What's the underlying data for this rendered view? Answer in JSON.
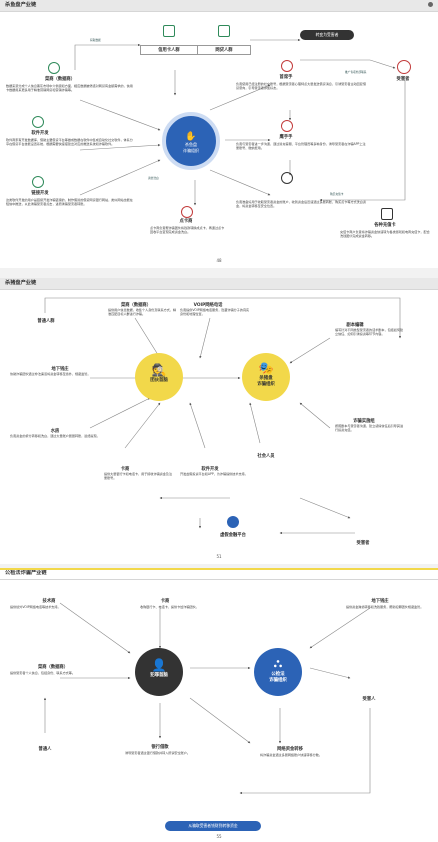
{
  "pages": [
    {
      "header": "杀鱼盘产业链",
      "page_number": "48",
      "center": {
        "line1": "杀鱼盘",
        "line2": "诈骗组织"
      },
      "pill_top": "转变为受害者",
      "nodes": {
        "credit": "信用卡人群",
        "webloan": "网贷人群",
        "vendor": "菜商（数据商）",
        "software": "软件开发",
        "linkdev": "链接开发",
        "aid": "点卡商",
        "zhuashou": "首席手",
        "xiangshou": "鹰手手",
        "zhuanshou": "资金手",
        "charge": "各种充值卡",
        "victim": "受害者",
        "player": "玩家"
      },
      "descs": {
        "vendor": "数据来源分成个人信息黑灰市场中介倒卖和方面，相应数据被筛选对网贷有金额需求的，信用卡数据用来更多用于精准营销网贷和营销诈骗等。",
        "software": "软件商家有开发数据库，借助主要借贷平台等做成数据在软件中集成自动化社交软件，体系分享在借贷平台技能设置系统，根据需要快速搭建出对应的推送系统和诈骗软件。",
        "linkdev": "这类软件开发的用户是链接开发诈骗链接的，制作假冒的借贷网贷银行网站，类似网站也能在短信中推送，以此诱骗受害者点击，进而诱骗受害者转账。",
        "zhuashou": "负责使用已经注册的社交账号，根据受害者心理特点大量发送借贷消息，引诱受害者主动回复借贷意向，引导受害者添加好友。",
        "xiangshou": "负责与受害者进一步沟通，通过冒充客服、平台管理员等多种身份，诱导受害者在诈骗APP上注册账号、缴纳费用。",
        "zhuanshou": "负责准备好用于收取受害者资金的账户，收到资金后迅速通过多层转账、购买点卡等方式洗白资金，将资金转移至安全位置。",
        "aid": "点卡商负责帮诈骗团伙将钱款转换成点卡，再通过点卡回收平台变现完成资金洗白。",
        "charge": "充值卡商户负责将诈骗资金快速转为各类游戏和电商充值卡，配合洗钱团伙完成资金转移。"
      },
      "arrows": {
        "top": "获取数据",
        "left_top": "提供数据",
        "left_mid": "提供软件",
        "left_bot": "提供链接",
        "cashout": "资金洗白",
        "right": "推广专项外部联系",
        "buy": "购买充值卡"
      }
    },
    {
      "header": "杀猪盘产业链",
      "page_number": "51",
      "center1": {
        "line1": "团伙首脑",
        "line2": ""
      },
      "center2": {
        "line1": "杀猪盘",
        "line2": "诈骗组织"
      },
      "nodes": {
        "ordinary": "普通人群",
        "vendor": "菜商（数据商）",
        "voip": "VOIP网络电话",
        "editor": "剧本编辑",
        "underground": "地下钱庄",
        "sendcard": "卡商",
        "software": "软件开发",
        "waterhouse": "水房",
        "dealer": "诈骗实施组",
        "society": "社会人员",
        "platform": "虚假金融平台",
        "victim": "受害者"
      },
      "descs": {
        "vendor": "提供用户信息数据，收集个人身份及联系方式，精准匹配目标人群进行诈骗。",
        "voip": "负责提供VOIP网络电话服务，隐藏诈骗分子的真实身份和地理位置。",
        "editor": "编写针对不同类型受害者的话术剧本，包括如何建立信任、如何引诱投资等环节内容。",
        "underground": "协助诈骗团伙通过非法渠道将资金转移至境外，规避监管。",
        "waterhouse": "负责资金的拆分转移和洗白，通过大量账户层层转账，最终提现。",
        "sendcard": "提供大量银行卡和电话卡，用于接收诈骗资金及注册账号。",
        "software": "开发虚假投资平台和APP，为诈骗提供技术支持。",
        "dealer": "按照剧本与受害者沟通，建立感情信任后引导其进行投资充值。"
      },
      "arrows": {
        "a1": "资金转移",
        "a2": "提供剧本",
        "a3": "诈骗实施",
        "a4": "充值投资",
        "a5": "平台支持"
      }
    },
    {
      "header": "公检法诈骗产业链",
      "page_number": "55",
      "bottom_pill": "从骗取受害者钱财到转移资金",
      "center1": {
        "line1": "犯罪首脑",
        "line2": ""
      },
      "center2": {
        "line1": "公检法",
        "line2": "诈骗组织"
      },
      "nodes": {
        "tech": "技术商",
        "card": "卡商",
        "underground": "地下钱庄",
        "vendor": "菜商（数据商）",
        "victim": "受害人",
        "ordinary": "普通人",
        "bank": "银行借款",
        "network": "网络资金转移"
      },
      "descs": {
        "tech": "提供境外VOIP网络电话等技术支持。",
        "card": "收购银行卡、电话卡，提供卡给诈骗团伙。",
        "underground": "提供资金跨境转移和洗钱服务，帮助犯罪团伙规避监管。",
        "vendor": "提供受害者个人信息，包括身份、联系方式等。",
        "bank": "诱导受害者通过银行借款并转入所谓安全账户。",
        "network": "将诈骗资金通过多层网络账户快速转移分散。"
      },
      "arrows": {
        "b1": "提供技术",
        "b2": "提供卡",
        "b3": "资金洗白",
        "b4": "实施诈骗",
        "b5": "转移资金"
      }
    }
  ],
  "colors": {
    "green": "#2f8a5a",
    "blue": "#2c63b6",
    "red": "#c23b3b",
    "dark": "#333333",
    "yellow": "#f2d84a"
  }
}
